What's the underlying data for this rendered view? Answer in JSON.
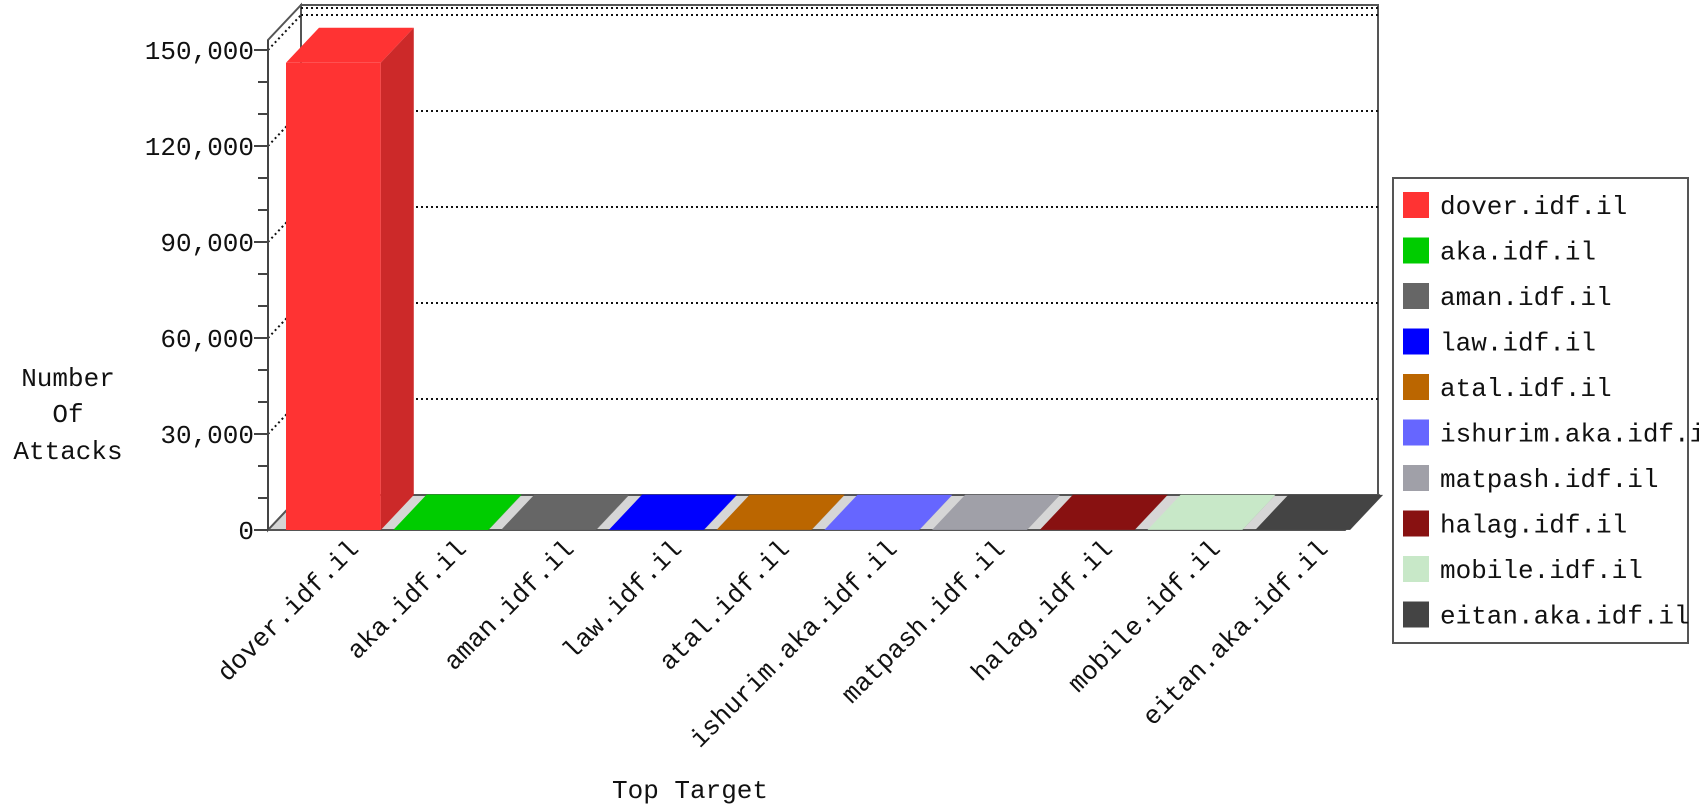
{
  "chart_data": {
    "type": "bar",
    "title": "",
    "xlabel": "Top Target",
    "ylabel_lines": [
      "Number",
      "Of",
      "Attacks"
    ],
    "ylim": [
      0,
      150000
    ],
    "yticks": [
      0,
      30000,
      60000,
      90000,
      120000,
      150000
    ],
    "ytick_labels": [
      "0",
      "30,000",
      "60,000",
      "90,000",
      "120,000",
      "150,000"
    ],
    "grid": true,
    "legend_position": "right",
    "categories": [
      "dover.idf.il",
      "aka.idf.il",
      "aman.idf.il",
      "law.idf.il",
      "atal.idf.il",
      "ishurim.aka.idf.il",
      "matpash.idf.il",
      "halag.idf.il",
      "mobile.idf.il",
      "eitan.aka.idf.il"
    ],
    "values": [
      146000,
      150,
      120,
      110,
      100,
      90,
      80,
      70,
      60,
      50
    ],
    "colors": [
      "#ff3333",
      "#00cc00",
      "#666666",
      "#0000ff",
      "#bb6600",
      "#6666ff",
      "#a0a0a8",
      "#881111",
      "#c8e8c8",
      "#444444"
    ]
  }
}
